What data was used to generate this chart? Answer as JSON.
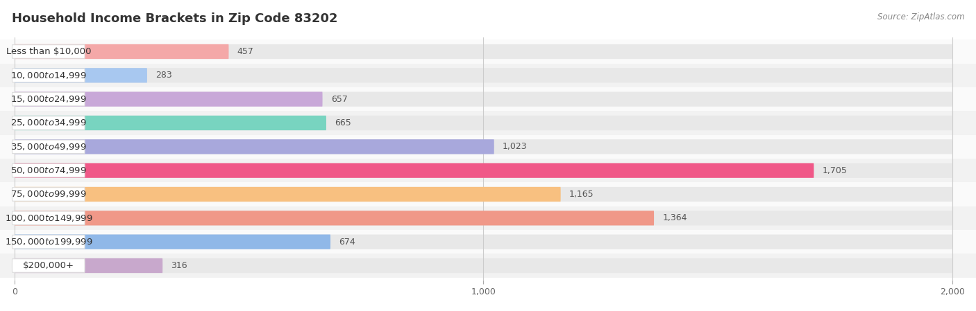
{
  "title": "Household Income Brackets in Zip Code 83202",
  "source": "Source: ZipAtlas.com",
  "categories": [
    "Less than $10,000",
    "$10,000 to $14,999",
    "$15,000 to $24,999",
    "$25,000 to $34,999",
    "$35,000 to $49,999",
    "$50,000 to $74,999",
    "$75,000 to $99,999",
    "$100,000 to $149,999",
    "$150,000 to $199,999",
    "$200,000+"
  ],
  "values": [
    457,
    283,
    657,
    665,
    1023,
    1705,
    1165,
    1364,
    674,
    316
  ],
  "bar_colors": [
    "#F4A8A8",
    "#A8C8F0",
    "#C8A8D8",
    "#78D4C0",
    "#A8A8DC",
    "#F05888",
    "#F8C080",
    "#F09888",
    "#90B8E8",
    "#C8A8CC"
  ],
  "bar_bg_color": "#E8E8E8",
  "row_bg_colors": [
    "#FAFAFA",
    "#F2F2F2"
  ],
  "xlim": [
    0,
    2000
  ],
  "xticks": [
    0,
    1000,
    2000
  ],
  "fig_bg": "#FFFFFF",
  "title_color": "#333333",
  "title_fontsize": 13,
  "label_fontsize": 9.5,
  "value_fontsize": 9,
  "source_fontsize": 8.5
}
